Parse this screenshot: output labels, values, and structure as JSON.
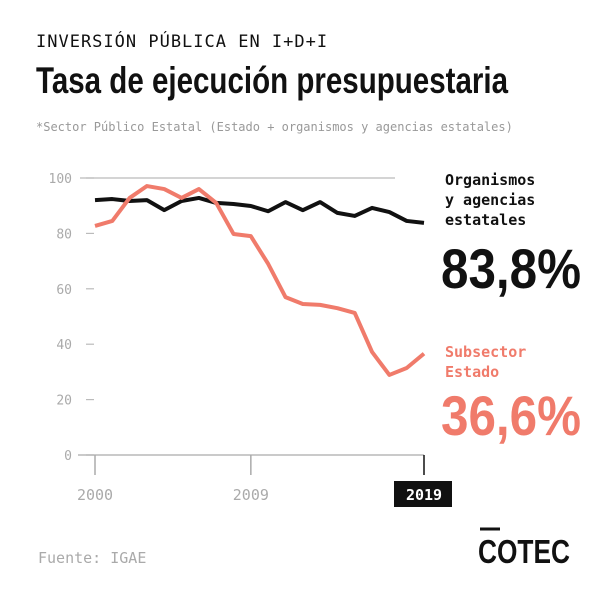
{
  "header": "INVERSIÓN PÚBLICA EN I+D+I",
  "brand": "COTEC",
  "chart_data": {
    "type": "line",
    "title": "Tasa de ejecución presupuestaria",
    "subtitle": "*Sector Público Estatal (Estado + organismos y agencias estatales)",
    "source": "Fuente: IGAE",
    "x": [
      2000,
      2001,
      2002,
      2003,
      2004,
      2005,
      2006,
      2007,
      2008,
      2009,
      2010,
      2011,
      2012,
      2013,
      2014,
      2015,
      2016,
      2017,
      2018,
      2019
    ],
    "xlim": [
      2000,
      2019
    ],
    "xticks": [
      2000,
      2009,
      2019
    ],
    "ylim": [
      0,
      100
    ],
    "yticks": [
      0,
      20,
      40,
      60,
      80,
      100
    ],
    "series": [
      {
        "name": "Organismos y agencias estatales",
        "color": "#111111",
        "values": [
          92,
          92.4,
          91.7,
          92,
          88.4,
          91.7,
          92.8,
          91,
          90.6,
          89.9,
          88,
          91.3,
          88.4,
          91.3,
          87.4,
          86.3,
          89.2,
          87.7,
          84.5,
          83.8
        ],
        "value_labels": [
          null,
          null,
          null,
          null,
          null,
          null,
          null,
          null,
          null,
          null,
          null,
          null,
          null,
          null,
          null,
          null,
          null,
          null,
          null,
          "83,8%"
        ]
      },
      {
        "name": "Subsector Estado",
        "color": "#f07b6b",
        "values": [
          82.7,
          84.5,
          92.8,
          97.1,
          96,
          92.8,
          96,
          91,
          79.8,
          79,
          69,
          57,
          54.5,
          54.2,
          53,
          51.3,
          37.2,
          28.9,
          31.4,
          36.6
        ],
        "value_labels": [
          null,
          null,
          null,
          null,
          null,
          null,
          null,
          null,
          null,
          null,
          null,
          null,
          null,
          null,
          null,
          null,
          null,
          null,
          null,
          "36,6%"
        ]
      }
    ]
  }
}
